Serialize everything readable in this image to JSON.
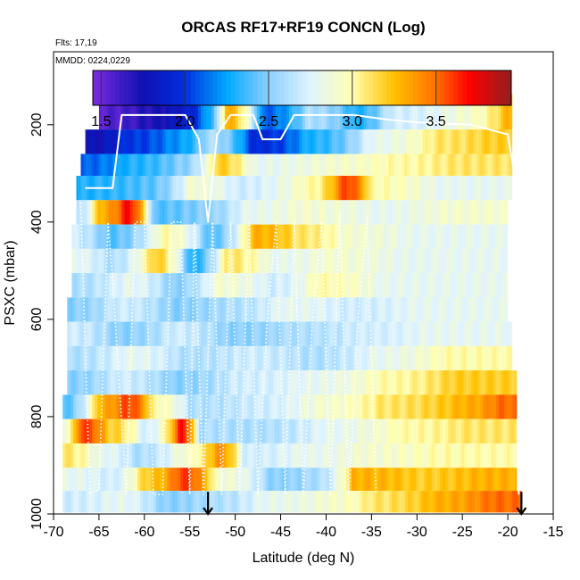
{
  "chart_data": {
    "type": "heatmap",
    "title": "ORCAS RF17+RF19 CONCN (Log)",
    "flights_label": "Flts: 17,19",
    "dates_label": "MMDD: 0224,0229",
    "xlabel": "Latitude (deg N)",
    "ylabel": "PSXC (mbar)",
    "xlim": [
      -70,
      -15
    ],
    "ylim": [
      1000,
      50
    ],
    "x_ticks": [
      -70,
      -65,
      -60,
      -55,
      -50,
      -45,
      -40,
      -35,
      -30,
      -25,
      -20,
      -15
    ],
    "x_tick_labels": [
      "-70",
      "-65",
      "-60",
      "-55",
      "-50",
      "-45",
      "-40",
      "-35",
      "-30",
      "-25",
      "-20",
      "-15"
    ],
    "y_ticks": [
      200,
      400,
      600,
      800,
      1000
    ],
    "y_tick_labels": [
      "200",
      "400",
      "600",
      "800",
      "1000"
    ],
    "colorbar": {
      "range": [
        1.45,
        3.95
      ],
      "ticks": [
        1.5,
        2.0,
        2.5,
        3.0,
        3.5
      ],
      "tick_labels": [
        "1.5",
        "2.0",
        "2.5",
        "3.0",
        "3.5"
      ],
      "stops": [
        {
          "v": 1.45,
          "color": "#7b2be0"
        },
        {
          "v": 1.75,
          "color": "#1010b0"
        },
        {
          "v": 2.0,
          "color": "#0030e0"
        },
        {
          "v": 2.25,
          "color": "#00a8ff"
        },
        {
          "v": 2.5,
          "color": "#8cd0ff"
        },
        {
          "v": 2.75,
          "color": "#e0f4ff"
        },
        {
          "v": 3.0,
          "color": "#ffffb0"
        },
        {
          "v": 3.25,
          "color": "#ffc000"
        },
        {
          "v": 3.5,
          "color": "#ff7000"
        },
        {
          "v": 3.7,
          "color": "#ff0000"
        },
        {
          "v": 3.95,
          "color": "#902020"
        }
      ]
    },
    "pressure_bands": [
      {
        "p": 180,
        "lat_min": -65,
        "lat_max": -19.5,
        "segments": [
          [
            -65,
            1.55
          ],
          [
            -60,
            1.7
          ],
          [
            -56,
            1.85
          ],
          [
            -53,
            2.3
          ],
          [
            -51,
            3.3
          ],
          [
            -47,
            2.1
          ],
          [
            -42,
            2.6
          ],
          [
            -37,
            2.3
          ],
          [
            -33,
            2.7
          ],
          [
            -25,
            2.9
          ],
          [
            -20,
            3.3
          ]
        ]
      },
      {
        "p": 240,
        "lat_min": -66.5,
        "lat_max": -19.5,
        "segments": [
          [
            -66.5,
            1.75
          ],
          [
            -62,
            2.0
          ],
          [
            -57,
            2.2
          ],
          [
            -53,
            2.6
          ],
          [
            -48,
            1.95
          ],
          [
            -42,
            2.3
          ],
          [
            -35,
            2.8
          ],
          [
            -28,
            3.1
          ],
          [
            -22,
            3.2
          ]
        ]
      },
      {
        "p": 280,
        "lat_min": -67,
        "lat_max": -19.5,
        "segments": [
          [
            -67,
            2.1
          ],
          [
            -62,
            2.3
          ],
          [
            -56,
            2.5
          ],
          [
            -52,
            3.2
          ],
          [
            -48,
            2.8
          ],
          [
            -40,
            2.9
          ],
          [
            -33,
            3.0
          ],
          [
            -26,
            3.1
          ]
        ]
      },
      {
        "p": 330,
        "lat_min": -67.5,
        "lat_max": -19.5,
        "segments": [
          [
            -67.5,
            2.3
          ],
          [
            -60,
            2.4
          ],
          [
            -55,
            2.9
          ],
          [
            -50,
            2.7
          ],
          [
            -42,
            3.0
          ],
          [
            -38,
            3.6
          ],
          [
            -35,
            3.0
          ],
          [
            -28,
            2.8
          ]
        ]
      },
      {
        "p": 380,
        "lat_min": -67.5,
        "lat_max": -20,
        "segments": [
          [
            -67.5,
            2.6
          ],
          [
            -65,
            3.3
          ],
          [
            -62,
            3.7
          ],
          [
            -59,
            2.4
          ],
          [
            -54,
            2.5
          ],
          [
            -49,
            2.8
          ],
          [
            -43,
            2.9
          ],
          [
            -35,
            2.8
          ],
          [
            -27,
            2.9
          ]
        ]
      },
      {
        "p": 430,
        "lat_min": -68,
        "lat_max": -20,
        "segments": [
          [
            -68,
            2.7
          ],
          [
            -64,
            2.4
          ],
          [
            -58,
            3.0
          ],
          [
            -53,
            2.4
          ],
          [
            -48,
            3.3
          ],
          [
            -43,
            3.1
          ],
          [
            -38,
            2.9
          ],
          [
            -31,
            2.8
          ]
        ]
      },
      {
        "p": 480,
        "lat_min": -68,
        "lat_max": -20,
        "segments": [
          [
            -68,
            2.8
          ],
          [
            -64,
            2.6
          ],
          [
            -59,
            3.2
          ],
          [
            -55,
            2.3
          ],
          [
            -51,
            3.1
          ],
          [
            -46,
            2.8
          ],
          [
            -40,
            2.9
          ],
          [
            -32,
            2.8
          ]
        ]
      },
      {
        "p": 530,
        "lat_min": -68,
        "lat_max": -20,
        "segments": [
          [
            -68,
            2.6
          ],
          [
            -62,
            2.8
          ],
          [
            -57,
            2.5
          ],
          [
            -52,
            2.9
          ],
          [
            -46,
            2.7
          ],
          [
            -41,
            3.0
          ],
          [
            -34,
            2.8
          ]
        ]
      },
      {
        "p": 580,
        "lat_min": -68.5,
        "lat_max": -20,
        "segments": [
          [
            -68.5,
            2.5
          ],
          [
            -63,
            2.7
          ],
          [
            -57,
            2.5
          ],
          [
            -51,
            2.6
          ],
          [
            -45,
            2.8
          ],
          [
            -38,
            2.7
          ],
          [
            -30,
            2.8
          ]
        ]
      },
      {
        "p": 630,
        "lat_min": -68.5,
        "lat_max": -19.5,
        "segments": [
          [
            -68.5,
            2.7
          ],
          [
            -63,
            2.5
          ],
          [
            -57,
            2.7
          ],
          [
            -51,
            2.5
          ],
          [
            -44,
            2.6
          ],
          [
            -37,
            2.7
          ],
          [
            -29,
            2.8
          ]
        ]
      },
      {
        "p": 680,
        "lat_min": -68.5,
        "lat_max": -19.5,
        "segments": [
          [
            -68.5,
            2.6
          ],
          [
            -62,
            2.8
          ],
          [
            -56,
            2.6
          ],
          [
            -49,
            2.7
          ],
          [
            -42,
            2.6
          ],
          [
            -35,
            2.8
          ],
          [
            -27,
            3.0
          ]
        ]
      },
      {
        "p": 730,
        "lat_min": -68.5,
        "lat_max": -19,
        "segments": [
          [
            -68.5,
            2.5
          ],
          [
            -63,
            2.7
          ],
          [
            -57,
            2.5
          ],
          [
            -50,
            2.7
          ],
          [
            -42,
            2.8
          ],
          [
            -34,
            3.0
          ],
          [
            -26,
            3.2
          ]
        ]
      },
      {
        "p": 780,
        "lat_min": -69,
        "lat_max": -19,
        "segments": [
          [
            -69,
            2.4
          ],
          [
            -65,
            3.3
          ],
          [
            -62,
            3.6
          ],
          [
            -59,
            3.0
          ],
          [
            -55,
            2.6
          ],
          [
            -48,
            2.7
          ],
          [
            -41,
            2.9
          ],
          [
            -34,
            3.1
          ],
          [
            -25,
            3.3
          ],
          [
            -21,
            3.5
          ]
        ]
      },
      {
        "p": 830,
        "lat_min": -69,
        "lat_max": -19,
        "segments": [
          [
            -69,
            2.9
          ],
          [
            -67,
            3.6
          ],
          [
            -64,
            3.2
          ],
          [
            -60,
            2.7
          ],
          [
            -56,
            3.7
          ],
          [
            -54,
            2.6
          ],
          [
            -48,
            2.6
          ],
          [
            -40,
            2.8
          ],
          [
            -32,
            3.0
          ],
          [
            -25,
            3.1
          ]
        ]
      },
      {
        "p": 880,
        "lat_min": -69,
        "lat_max": -19,
        "segments": [
          [
            -69,
            3.1
          ],
          [
            -65,
            2.8
          ],
          [
            -61,
            2.6
          ],
          [
            -56,
            2.9
          ],
          [
            -52,
            3.4
          ],
          [
            -49,
            2.7
          ],
          [
            -43,
            2.8
          ],
          [
            -36,
            2.9
          ],
          [
            -28,
            3.0
          ]
        ]
      },
      {
        "p": 930,
        "lat_min": -69,
        "lat_max": -19,
        "segments": [
          [
            -69,
            2.8
          ],
          [
            -64,
            2.7
          ],
          [
            -60,
            3.2
          ],
          [
            -56,
            3.6
          ],
          [
            -52,
            2.9
          ],
          [
            -46,
            2.5
          ],
          [
            -41,
            2.6
          ],
          [
            -37,
            3.3
          ],
          [
            -30,
            3.2
          ],
          [
            -23,
            3.3
          ]
        ]
      },
      {
        "p": 975,
        "lat_min": -69,
        "lat_max": -18.5,
        "segments": [
          [
            -69,
            2.7
          ],
          [
            -63,
            2.8
          ],
          [
            -58,
            2.5
          ],
          [
            -53,
            2.6
          ],
          [
            -47,
            2.8
          ],
          [
            -40,
            2.9
          ],
          [
            -35,
            3.1
          ],
          [
            -28,
            3.3
          ],
          [
            -22,
            3.5
          ]
        ]
      }
    ],
    "profile_traces": [
      {
        "name": "rf17-track",
        "style": "solid",
        "points": [
          [
            -66.5,
            330
          ],
          [
            -63.5,
            330
          ],
          [
            -62.5,
            180
          ],
          [
            -55.5,
            180
          ],
          [
            -54,
            230
          ],
          [
            -53,
            400
          ],
          [
            -52,
            220
          ],
          [
            -50.5,
            180
          ],
          [
            -48,
            180
          ],
          [
            -47,
            230
          ],
          [
            -45,
            230
          ],
          [
            -43.5,
            180
          ],
          [
            -37,
            180
          ],
          [
            -33,
            190
          ],
          [
            -30,
            195
          ],
          [
            -24,
            200
          ],
          [
            -20,
            220
          ],
          [
            -19,
            330
          ],
          [
            -18.8,
            960
          ]
        ]
      },
      {
        "name": "rf19-track",
        "style": "dotted",
        "points": [
          [
            -67,
            360
          ],
          [
            -66,
            960
          ],
          [
            -65,
            950
          ],
          [
            -64,
            400
          ],
          [
            -63.5,
            520
          ],
          [
            -62,
            960
          ],
          [
            -61,
            400
          ],
          [
            -60,
            400
          ],
          [
            -59,
            960
          ],
          [
            -58,
            960
          ],
          [
            -57,
            400
          ],
          [
            -56,
            400
          ],
          [
            -55,
            960
          ],
          [
            -54.5,
            400
          ],
          [
            -53.5,
            960
          ],
          [
            -52.5,
            400
          ],
          [
            -51.5,
            960
          ],
          [
            -50.5,
            400
          ],
          [
            -49.5,
            960
          ],
          [
            -48.5,
            400
          ],
          [
            -47.5,
            960
          ],
          [
            -46.5,
            600
          ],
          [
            -45.5,
            400
          ],
          [
            -44.5,
            960
          ],
          [
            -43.5,
            400
          ],
          [
            -42.5,
            960
          ],
          [
            -41.5,
            600
          ],
          [
            -40.5,
            400
          ],
          [
            -39.5,
            960
          ],
          [
            -38.5,
            380
          ],
          [
            -37.5,
            960
          ],
          [
            -36.5,
            600
          ],
          [
            -35.5,
            390
          ],
          [
            -34.5,
            960
          ]
        ]
      }
    ],
    "arrows": [
      {
        "name": "start-arrow",
        "lat": -53,
        "p_top": 960,
        "p_bottom": 1000
      },
      {
        "name": "end-arrow",
        "lat": -18.5,
        "p_top": 960,
        "p_bottom": 1000
      }
    ]
  }
}
